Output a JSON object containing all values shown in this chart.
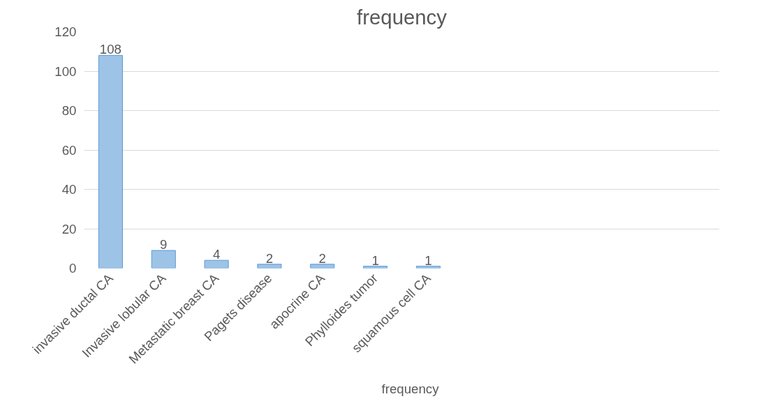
{
  "chart_data": {
    "type": "bar",
    "title": "frequency",
    "categories": [
      "invasive ductal CA",
      "Invasive lobular CA",
      "Metastatic breast CA",
      "Pagets disease",
      "apocrine CA",
      "Phylloides tumor",
      "squamous cell CA",
      null,
      null,
      null,
      null,
      null
    ],
    "series": [
      {
        "name": "frequency",
        "color": "#9dc3e6",
        "values": [
          108,
          9,
          4,
          2,
          2,
          1,
          1,
          null,
          null,
          null,
          null,
          null
        ]
      }
    ],
    "ylim": [
      0,
      120
    ],
    "yticks": [
      0,
      20,
      40,
      60,
      80,
      100,
      120
    ],
    "grid": "y",
    "legend": "bottom",
    "data_labels": true
  }
}
